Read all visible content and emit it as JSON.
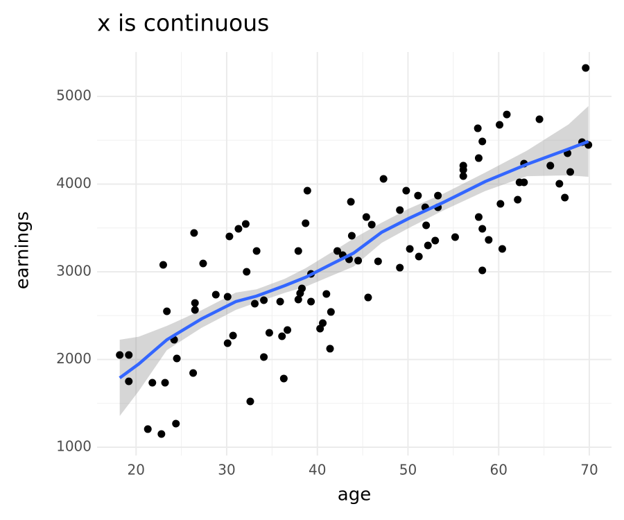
{
  "chart_data": {
    "type": "scatter",
    "title": "x is continuous",
    "x_label": "age",
    "y_label": "earnings",
    "x": [
      18.2,
      19.2,
      19.2,
      21.3,
      21.8,
      22.8,
      23.0,
      23.2,
      23.4,
      24.2,
      24.4,
      24.5,
      26.3,
      26.4,
      26.5,
      26.5,
      27.4,
      28.8,
      30.1,
      30.1,
      30.3,
      30.7,
      31.3,
      32.1,
      32.2,
      32.6,
      33.1,
      33.3,
      34.1,
      34.1,
      34.7,
      35.9,
      36.1,
      36.3,
      36.7,
      37.9,
      37.9,
      38.1,
      38.3,
      38.7,
      38.9,
      39.3,
      39.3,
      40.3,
      40.6,
      41.0,
      41.4,
      41.5,
      42.2,
      42.8,
      43.5,
      43.7,
      43.8,
      44.5,
      45.4,
      45.6,
      46.0,
      46.7,
      47.3,
      49.1,
      49.1,
      49.8,
      50.2,
      51.1,
      51.2,
      51.9,
      52.0,
      52.2,
      53.0,
      53.3,
      53.3,
      55.2,
      56.1,
      56.1,
      56.1,
      57.7,
      57.8,
      57.8,
      58.2,
      58.2,
      58.2,
      58.9,
      60.1,
      60.2,
      60.4,
      60.9,
      62.1,
      62.3,
      62.8,
      62.8,
      64.5,
      65.7,
      66.7,
      67.3,
      67.6,
      67.9,
      69.2,
      69.6,
      69.9
    ],
    "values": [
      2051,
      2051,
      1751,
      1206,
      1735,
      1150,
      3079,
      1735,
      2549,
      2225,
      1269,
      2012,
      1846,
      3443,
      2644,
      2565,
      3095,
      2739,
      2715,
      2186,
      3403,
      2273,
      3490,
      3545,
      3000,
      1522,
      2636,
      3237,
      2676,
      2028,
      2304,
      2660,
      2265,
      1783,
      2336,
      3237,
      2684,
      2755,
      2810,
      3553,
      3925,
      2660,
      2976,
      2352,
      2415,
      2747,
      2123,
      2542,
      3237,
      3190,
      3142,
      3798,
      3411,
      3127,
      3624,
      2707,
      3538,
      3119,
      4059,
      3047,
      3704,
      3925,
      3261,
      3869,
      3174,
      3735,
      3530,
      3300,
      3356,
      3869,
      3735,
      3395,
      4210,
      4162,
      4091,
      4636,
      4296,
      3624,
      4486,
      3490,
      3016,
      3364,
      4676,
      3775,
      3261,
      4794,
      3822,
      4020,
      4233,
      4020,
      4739,
      4210,
      4004,
      3846,
      4352,
      4138,
      4478,
      5324,
      4447
    ],
    "color": "#000000",
    "smooth": {
      "color": "#3366ff",
      "band_color": "#999999",
      "x": [
        18.2,
        20.3,
        23.4,
        27.2,
        31.0,
        33.3,
        36.4,
        38.7,
        41.7,
        44.0,
        47.1,
        50.1,
        53.9,
        58.5,
        63.1,
        67.7,
        69.9
      ],
      "values": [
        1790,
        1949,
        2225,
        2462,
        2660,
        2723,
        2842,
        2937,
        3095,
        3213,
        3451,
        3609,
        3791,
        4028,
        4225,
        4399,
        4486
      ],
      "lower": [
        1356,
        1640,
        2107,
        2360,
        2565,
        2650,
        2760,
        2830,
        2960,
        3060,
        3330,
        3500,
        3700,
        3920,
        4090,
        4100,
        4083
      ],
      "upper": [
        2225,
        2260,
        2383,
        2560,
        2763,
        2800,
        2920,
        3040,
        3230,
        3380,
        3560,
        3720,
        3890,
        4130,
        4380,
        4680,
        4889
      ]
    },
    "xlim": [
      15.7,
      72.45
    ],
    "ylim": [
      905,
      5506
    ],
    "xticks": [
      20,
      30,
      40,
      50,
      60,
      70
    ],
    "yticks": [
      1000,
      2000,
      3000,
      4000,
      5000
    ],
    "minor_xticks": [
      25,
      35,
      45,
      55,
      65
    ],
    "minor_yticks": [
      1500,
      2500,
      3500,
      4500
    ],
    "grid": true
  }
}
